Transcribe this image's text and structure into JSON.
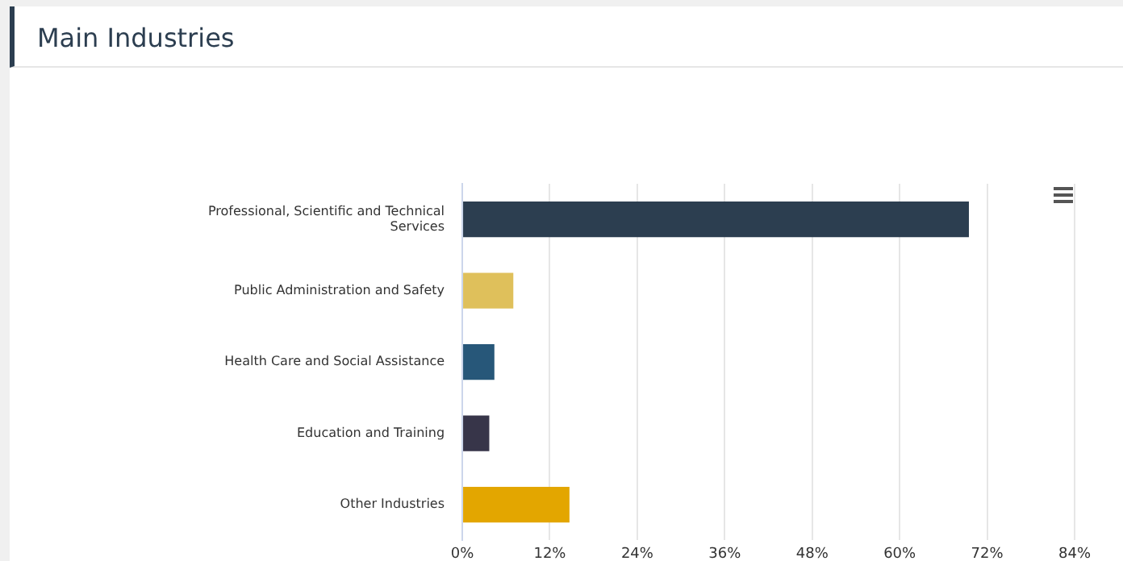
{
  "chart_data": {
    "type": "bar",
    "title": "Main Industries",
    "orientation": "horizontal",
    "categories": [
      [
        "Professional, Scientific and Technical",
        "Services"
      ],
      "Public Administration and Safety",
      "Health Care and Social Assistance",
      "Education and Training",
      "Other Industries"
    ],
    "values": [
      69.5,
      7.0,
      4.4,
      3.7,
      14.7
    ],
    "colors": [
      "#2c3e50",
      "#dfc05b",
      "#275779",
      "#373549",
      "#e3a600"
    ],
    "xlim": [
      0,
      84
    ],
    "xticks": [
      {
        "value": 0,
        "label": "0%"
      },
      {
        "value": 12,
        "label": "12%"
      },
      {
        "value": 24,
        "label": "24%"
      },
      {
        "value": 36,
        "label": "36%"
      },
      {
        "value": 48,
        "label": "48%"
      },
      {
        "value": 60,
        "label": "60%"
      },
      {
        "value": 72,
        "label": "72%"
      },
      {
        "value": 84,
        "label": "84%"
      }
    ],
    "grid": "x",
    "legend": false
  }
}
